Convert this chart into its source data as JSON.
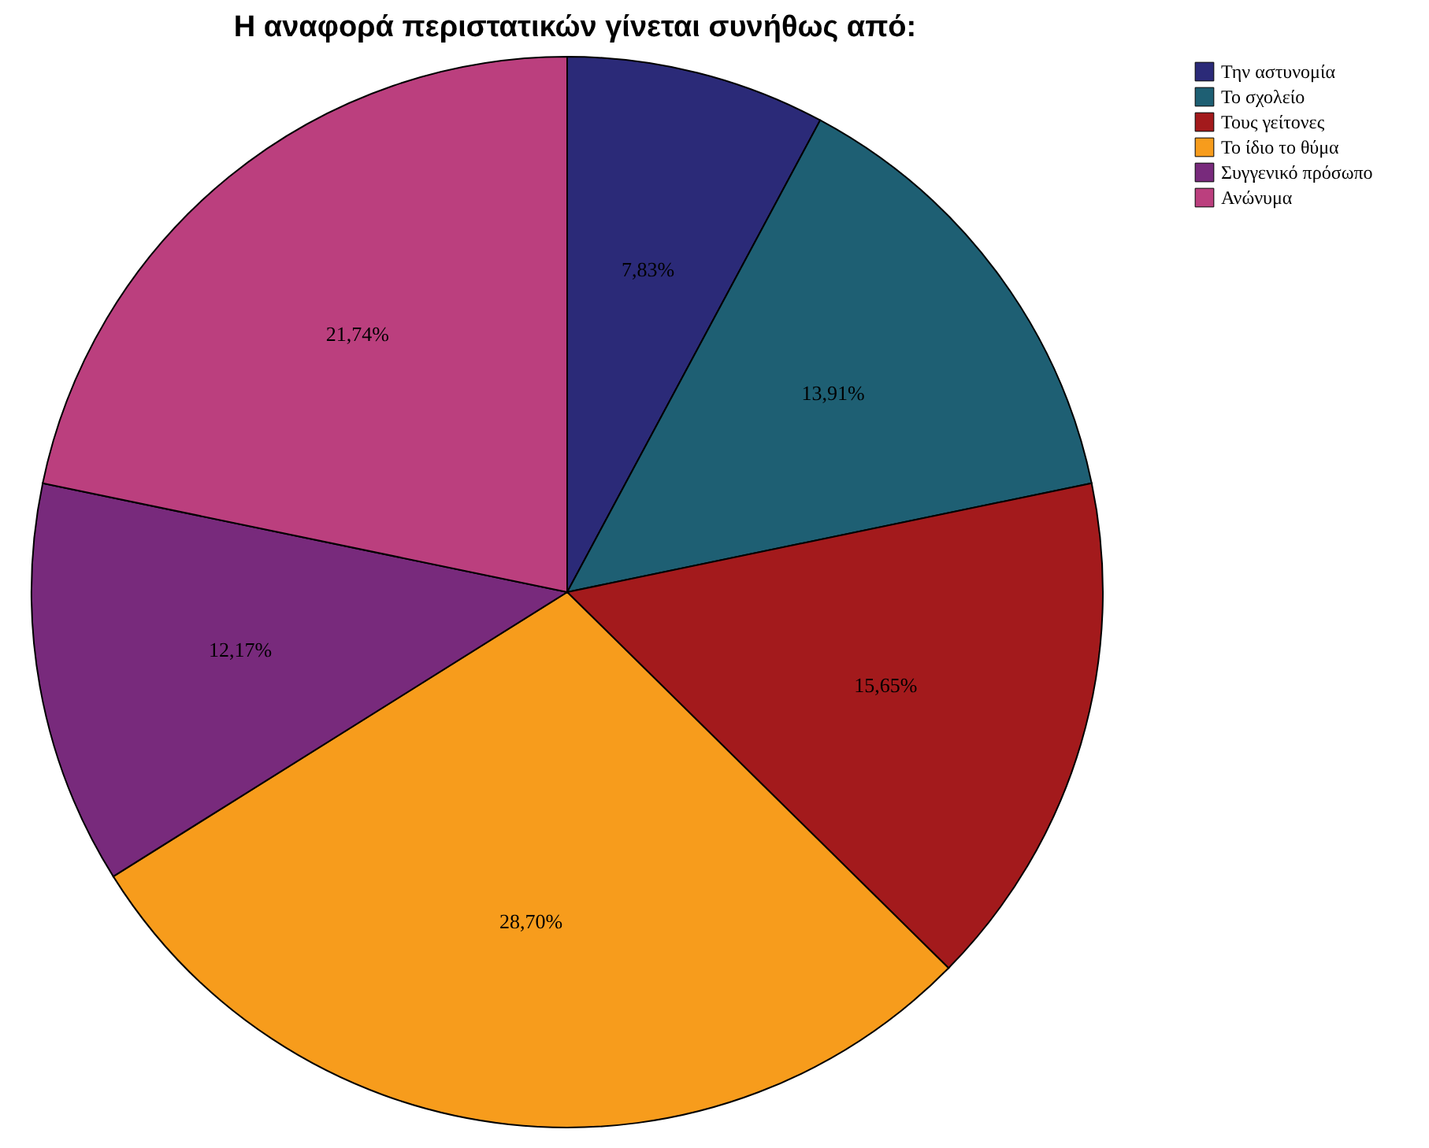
{
  "chart_data": {
    "type": "pie",
    "title": "Η αναφορά περιστατικών γίνεται συνήθως από:",
    "categories": [
      "Την αστυνομία",
      "Το σχολείο",
      "Τους γείτονες",
      "Το ίδιο το θύμα",
      "Συγγενικό πρόσωπο",
      "Ανώνυμα"
    ],
    "values": [
      7.83,
      13.91,
      15.65,
      28.7,
      12.17,
      21.74
    ],
    "colors": [
      "#2b2a78",
      "#1e5f73",
      "#a31a1c",
      "#f79c1c",
      "#782a7c",
      "#bb3f7e"
    ],
    "value_labels": [
      "7,83%",
      "13,91%",
      "15,65%",
      "28,70%",
      "12,17%",
      "21,74%"
    ],
    "legend": "top right"
  }
}
